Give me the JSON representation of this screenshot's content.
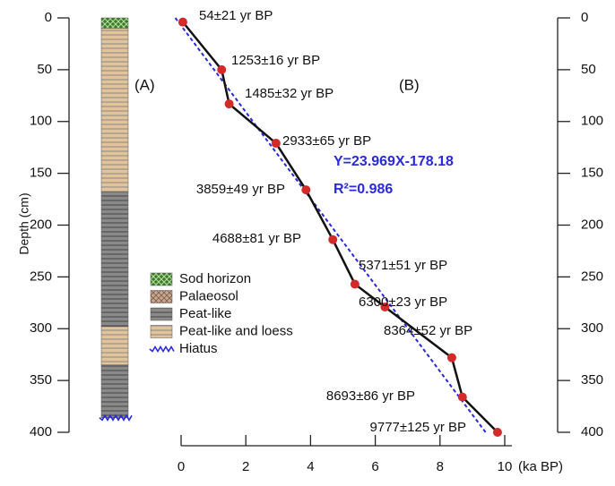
{
  "chart_data": {
    "type": "line",
    "panel_labels": [
      "(A)",
      "(B)"
    ],
    "y_label": "Depth (cm)",
    "x_label": "(ka BP)",
    "ylim": [
      0,
      400
    ],
    "yticks": [
      0,
      50,
      100,
      150,
      200,
      250,
      300,
      350,
      400
    ],
    "xlim": [
      0,
      10
    ],
    "xticks": [
      0,
      2,
      4,
      6,
      8,
      10
    ],
    "series": [
      {
        "color": "#111111",
        "marker_color": "#d42a2a",
        "x": [
          0.054,
          1.253,
          1.485,
          2.933,
          3.859,
          4.688,
          5.371,
          6.3,
          8.364,
          8.693,
          9.777
        ],
        "x_labels": [
          "54±21 yr BP",
          "1253±16 yr BP",
          "1485±32 yr BP",
          "2933±65 yr BP",
          "3859±49 yr BP",
          "4688±81 yr BP",
          "5371±51 yr BP",
          "6300±23 yr BP",
          "8364±52 yr BP",
          "8693±86 yr BP",
          "9777±125 yr BP"
        ],
        "values": [
          4,
          50,
          83,
          121,
          166,
          214,
          257,
          279,
          328,
          366,
          400
        ]
      }
    ],
    "regression": {
      "equation": "Y=23.969X-178.18",
      "slope": 23.969,
      "intercept": -178.18,
      "r2_label": "R²=0.986",
      "color": "#2a2adc"
    },
    "lithology": [
      {
        "kind": "sod",
        "top": 0,
        "bottom": 10
      },
      {
        "kind": "loess",
        "top": 10,
        "bottom": 168
      },
      {
        "kind": "peat",
        "top": 168,
        "bottom": 298
      },
      {
        "kind": "loess",
        "top": 298,
        "bottom": 335
      },
      {
        "kind": "peat",
        "top": 335,
        "bottom": 386
      }
    ],
    "legend": [
      {
        "kind": "sod",
        "label": "Sod horizon"
      },
      {
        "kind": "palaeosol",
        "label": "Palaeosol"
      },
      {
        "kind": "peat",
        "label": "Peat-like"
      },
      {
        "kind": "loess",
        "label": "Peat-like and loess"
      },
      {
        "kind": "hiatus",
        "label": "Hiatus"
      }
    ]
  }
}
